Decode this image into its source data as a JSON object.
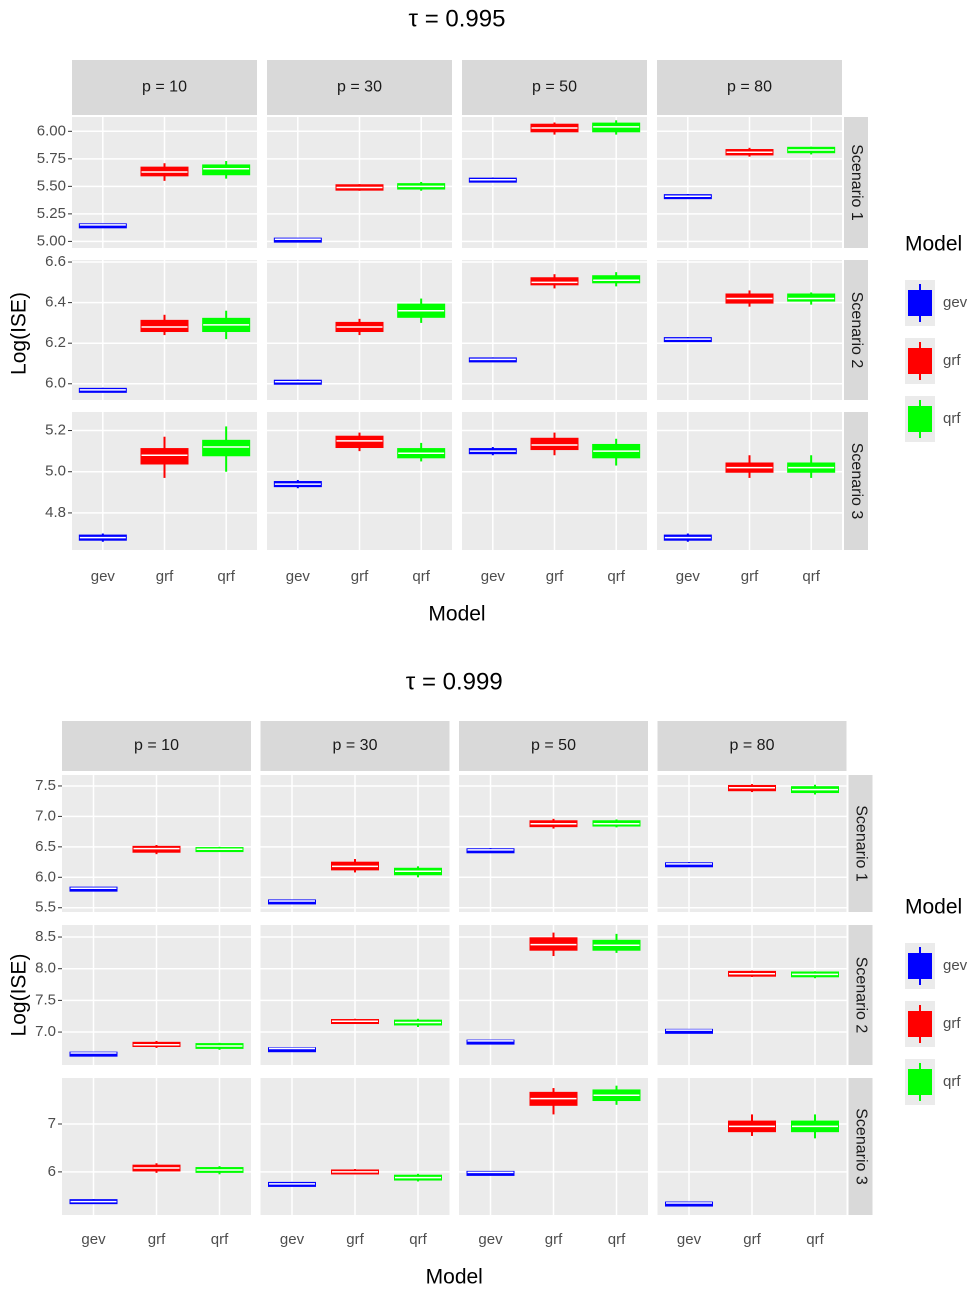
{
  "chart_data": [
    {
      "type": "box",
      "title": "τ = 0.995",
      "x_label": "Model",
      "y_label": "Log(ISE)",
      "legend_title": "Model",
      "categories": [
        "gev",
        "grf",
        "qrf"
      ],
      "series": [
        {
          "name": "gev",
          "color": "#0000ff"
        },
        {
          "name": "grf",
          "color": "#ff0000"
        },
        {
          "name": "qrf",
          "color": "#00ff00"
        }
      ],
      "columns": [
        "p = 10",
        "p = 30",
        "p = 50",
        "p = 80"
      ],
      "rows": [
        {
          "label": "Scenario 1",
          "ylim": [
            4.94,
            6.13
          ],
          "yticks": [
            {
              "value": 5,
              "label": "5.00"
            },
            {
              "value": 5.25,
              "label": "5.25"
            },
            {
              "value": 5.5,
              "label": "5.50"
            },
            {
              "value": 5.75,
              "label": "5.75"
            },
            {
              "value": 6,
              "label": "6.00"
            }
          ],
          "boxes": [
            [
              [
                5.14,
                5.145,
                5.15,
                5.155,
                5.16
              ],
              [
                5.55,
                5.6,
                5.63,
                5.67,
                5.71
              ],
              [
                5.57,
                5.61,
                5.66,
                5.69,
                5.73
              ]
            ],
            [
              [
                5.01,
                5.015,
                5.02,
                5.025,
                5.03
              ],
              [
                5.46,
                5.47,
                5.49,
                5.51,
                5.52
              ],
              [
                5.46,
                5.48,
                5.5,
                5.52,
                5.54
              ]
            ],
            [
              [
                5.54,
                5.55,
                5.56,
                5.57,
                5.58
              ],
              [
                5.97,
                6.0,
                6.03,
                6.06,
                6.08
              ],
              [
                5.97,
                6.0,
                6.04,
                6.07,
                6.1
              ]
            ],
            [
              [
                5.39,
                5.4,
                5.41,
                5.42,
                5.43
              ],
              [
                5.77,
                5.79,
                5.81,
                5.83,
                5.85
              ],
              [
                5.79,
                5.81,
                5.83,
                5.85,
                5.86
              ]
            ]
          ]
        },
        {
          "label": "Scenario 2",
          "ylim": [
            5.92,
            6.61
          ],
          "yticks": [
            {
              "value": 6,
              "label": "6.0"
            },
            6.2,
            6.4,
            6.6
          ],
          "boxes": [
            [
              [
                5.96,
                5.965,
                5.97,
                5.975,
                5.98
              ],
              [
                6.24,
                6.26,
                6.28,
                6.31,
                6.34
              ],
              [
                6.22,
                6.26,
                6.29,
                6.32,
                6.36
              ]
            ],
            [
              [
                6.0,
                6.005,
                6.01,
                6.015,
                6.02
              ],
              [
                6.24,
                6.26,
                6.28,
                6.3,
                6.32
              ],
              [
                6.3,
                6.33,
                6.36,
                6.39,
                6.42
              ]
            ],
            [
              [
                6.11,
                6.115,
                6.12,
                6.125,
                6.13
              ],
              [
                6.47,
                6.49,
                6.5,
                6.52,
                6.54
              ],
              [
                6.48,
                6.5,
                6.51,
                6.53,
                6.55
              ]
            ],
            [
              [
                6.21,
                6.215,
                6.22,
                6.225,
                6.23
              ],
              [
                6.38,
                6.4,
                6.42,
                6.44,
                6.46
              ],
              [
                6.39,
                6.41,
                6.42,
                6.44,
                6.45
              ]
            ]
          ]
        },
        {
          "label": "Scenario 3",
          "ylim": [
            4.62,
            5.29
          ],
          "yticks": [
            4.8,
            {
              "value": 5,
              "label": "5.0"
            },
            5.2
          ],
          "boxes": [
            [
              [
                4.66,
                4.67,
                4.68,
                4.69,
                4.7
              ],
              [
                4.97,
                5.04,
                5.08,
                5.11,
                5.17
              ],
              [
                5.0,
                5.08,
                5.12,
                5.15,
                5.22
              ]
            ],
            [
              [
                4.92,
                4.93,
                4.94,
                4.95,
                4.96
              ],
              [
                5.1,
                5.12,
                5.15,
                5.17,
                5.19
              ],
              [
                5.05,
                5.07,
                5.09,
                5.11,
                5.14
              ]
            ],
            [
              [
                5.08,
                5.09,
                5.1,
                5.11,
                5.12
              ],
              [
                5.08,
                5.11,
                5.13,
                5.16,
                5.19
              ],
              [
                5.03,
                5.07,
                5.1,
                5.13,
                5.16
              ]
            ],
            [
              [
                4.66,
                4.67,
                4.68,
                4.69,
                4.7
              ],
              [
                4.97,
                5.0,
                5.02,
                5.04,
                5.08
              ],
              [
                4.97,
                5.0,
                5.02,
                5.04,
                5.08
              ]
            ]
          ]
        }
      ]
    },
    {
      "type": "box",
      "title": "τ = 0.999",
      "x_label": "Model",
      "y_label": "Log(ISE)",
      "legend_title": "Model",
      "categories": [
        "gev",
        "grf",
        "qrf"
      ],
      "series": [
        {
          "name": "gev",
          "color": "#0000ff"
        },
        {
          "name": "grf",
          "color": "#ff0000"
        },
        {
          "name": "qrf",
          "color": "#00ff00"
        }
      ],
      "columns": [
        "p = 10",
        "p = 30",
        "p = 50",
        "p = 80"
      ],
      "rows": [
        {
          "label": "Scenario 1",
          "ylim": [
            5.43,
            7.68
          ],
          "yticks": [
            5.5,
            {
              "value": 6,
              "label": "6.0"
            },
            6.5,
            {
              "value": 7,
              "label": "7.0"
            },
            7.5
          ],
          "boxes": [
            [
              [
                5.8,
                5.81,
                5.82,
                5.83,
                5.84
              ],
              [
                6.38,
                6.42,
                6.47,
                6.5,
                6.53
              ],
              [
                6.42,
                6.44,
                6.46,
                6.48,
                6.5
              ]
            ],
            [
              [
                5.59,
                5.6,
                5.61,
                5.62,
                5.63
              ],
              [
                6.08,
                6.13,
                6.18,
                6.24,
                6.3
              ],
              [
                6.0,
                6.05,
                6.1,
                6.14,
                6.18
              ]
            ],
            [
              [
                6.42,
                6.43,
                6.45,
                6.46,
                6.48
              ],
              [
                6.8,
                6.84,
                6.88,
                6.92,
                6.96
              ],
              [
                6.82,
                6.85,
                6.88,
                6.92,
                6.95
              ]
            ],
            [
              [
                6.2,
                6.21,
                6.22,
                6.23,
                6.25
              ],
              [
                7.4,
                7.43,
                7.47,
                7.5,
                7.53
              ],
              [
                7.36,
                7.4,
                7.44,
                7.48,
                7.52
              ]
            ]
          ]
        },
        {
          "label": "Scenario 2",
          "ylim": [
            6.48,
            8.69
          ],
          "yticks": [
            {
              "value": 7,
              "label": "7.0"
            },
            7.5,
            {
              "value": 8,
              "label": "8.0"
            },
            8.5
          ],
          "boxes": [
            [
              [
                6.66,
                6.665,
                6.67,
                6.675,
                6.68
              ],
              [
                6.75,
                6.78,
                6.8,
                6.83,
                6.86
              ],
              [
                6.72,
                6.75,
                6.78,
                6.81,
                6.83
              ]
            ],
            [
              [
                6.73,
                6.735,
                6.74,
                6.745,
                6.75
              ],
              [
                7.13,
                7.15,
                7.17,
                7.19,
                7.21
              ],
              [
                7.08,
                7.12,
                7.15,
                7.18,
                7.21
              ]
            ],
            [
              [
                6.85,
                6.855,
                6.86,
                6.865,
                6.87
              ],
              [
                8.2,
                8.3,
                8.38,
                8.48,
                8.57
              ],
              [
                8.25,
                8.3,
                8.37,
                8.44,
                8.55
              ]
            ],
            [
              [
                7.02,
                7.025,
                7.03,
                7.035,
                7.04
              ],
              [
                7.87,
                7.89,
                7.92,
                7.95,
                7.97
              ],
              [
                7.85,
                7.88,
                7.91,
                7.94,
                7.96
              ]
            ]
          ]
        },
        {
          "label": "Scenario 3",
          "ylim": [
            5.1,
            7.96
          ],
          "yticks": [
            6,
            7
          ],
          "boxes": [
            [
              [
                5.33,
                5.36,
                5.38,
                5.41,
                5.43
              ],
              [
                5.98,
                6.03,
                6.08,
                6.13,
                6.18
              ],
              [
                5.95,
                6.0,
                6.04,
                6.08,
                6.12
              ]
            ],
            [
              [
                5.71,
                5.73,
                5.75,
                5.77,
                5.79
              ],
              [
                5.95,
                5.98,
                6.0,
                6.03,
                6.06
              ],
              [
                5.8,
                5.84,
                5.88,
                5.92,
                5.96
              ]
            ],
            [
              [
                5.97,
                5.98,
                5.99,
                6.0,
                6.01
              ],
              [
                7.2,
                7.4,
                7.53,
                7.65,
                7.75
              ],
              [
                7.4,
                7.5,
                7.6,
                7.7,
                7.8
              ]
            ],
            [
              [
                5.32,
                5.33,
                5.35,
                5.36,
                5.37
              ],
              [
                6.75,
                6.85,
                6.95,
                7.05,
                7.2
              ],
              [
                6.7,
                6.85,
                6.95,
                7.05,
                7.2
              ]
            ]
          ]
        }
      ]
    }
  ]
}
